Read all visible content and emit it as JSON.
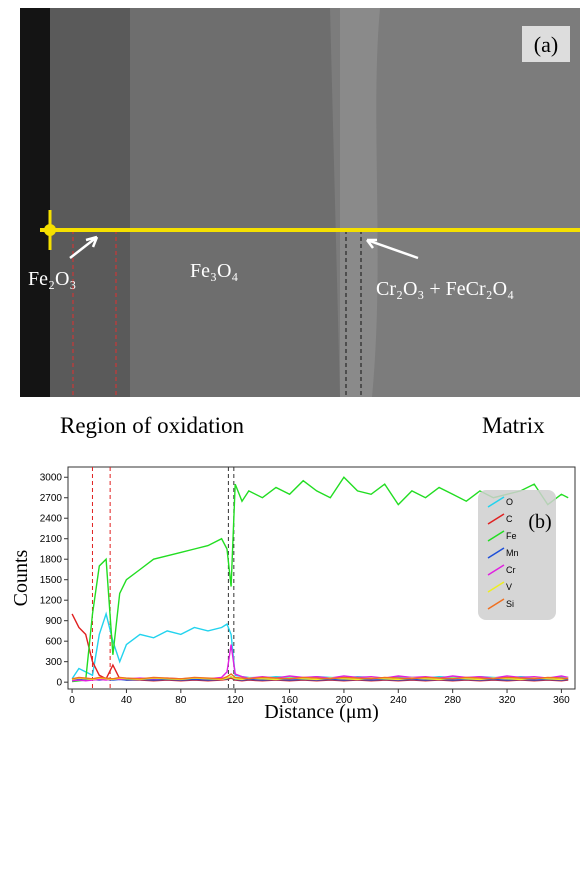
{
  "image": {
    "panel_label": "(a)",
    "labels": [
      "Fe₂O₃",
      "Fe₃O₄",
      "Cr₂O₃ + FeCr₂O₄"
    ],
    "captions": [
      "Region of oxidation",
      "Matrix"
    ]
  },
  "chart_data": {
    "type": "line",
    "annotation": "(b)",
    "xlabel": "Distance (μm)",
    "ylabel": "Counts",
    "x": [
      0,
      5,
      10,
      15,
      20,
      25,
      30,
      35,
      40,
      50,
      60,
      70,
      80,
      90,
      100,
      110,
      114,
      117,
      120,
      125,
      130,
      140,
      150,
      160,
      170,
      180,
      190,
      200,
      210,
      220,
      230,
      240,
      250,
      260,
      270,
      280,
      290,
      300,
      310,
      320,
      330,
      340,
      350,
      360,
      365
    ],
    "series": [
      {
        "name": "O",
        "color": "#22d3ee",
        "values": [
          50,
          200,
          150,
          100,
          700,
          1000,
          600,
          300,
          550,
          700,
          650,
          750,
          700,
          800,
          750,
          800,
          850,
          700,
          100,
          80,
          70,
          60,
          80,
          70,
          60,
          80,
          70,
          60,
          80,
          70,
          60,
          80,
          70,
          60,
          80,
          70,
          60,
          80,
          70,
          60,
          80,
          70,
          60,
          80,
          70
        ]
      },
      {
        "name": "C",
        "color": "#e02020",
        "values": [
          1000,
          800,
          700,
          300,
          100,
          50,
          250,
          50,
          30,
          30,
          20,
          30,
          20,
          30,
          20,
          30,
          40,
          60,
          30,
          20,
          30,
          20,
          30,
          20,
          30,
          20,
          30,
          20,
          30,
          20,
          30,
          20,
          30,
          20,
          30,
          20,
          30,
          20,
          30,
          20,
          30,
          20,
          30,
          20,
          30
        ]
      },
      {
        "name": "Fe",
        "color": "#22dd22",
        "values": [
          10,
          20,
          30,
          1000,
          1700,
          1800,
          400,
          1300,
          1500,
          1650,
          1800,
          1850,
          1900,
          1950,
          2000,
          2100,
          1950,
          1400,
          2900,
          2650,
          2800,
          2700,
          2850,
          2750,
          2950,
          2800,
          2700,
          3000,
          2800,
          2750,
          2900,
          2600,
          2800,
          2700,
          2850,
          2750,
          2650,
          2800,
          2700,
          2750,
          2800,
          2900,
          2600,
          2750,
          2700
        ]
      },
      {
        "name": "Mn",
        "color": "#1e4fd8",
        "values": [
          30,
          40,
          30,
          40,
          30,
          40,
          30,
          40,
          30,
          40,
          30,
          40,
          30,
          40,
          30,
          40,
          50,
          80,
          40,
          30,
          40,
          30,
          40,
          30,
          40,
          30,
          40,
          30,
          40,
          30,
          40,
          30,
          40,
          30,
          40,
          30,
          40,
          30,
          40,
          30,
          40,
          30,
          40,
          30,
          40
        ]
      },
      {
        "name": "Cr",
        "color": "#e020e0",
        "values": [
          20,
          30,
          20,
          30,
          40,
          30,
          50,
          40,
          50,
          60,
          50,
          60,
          50,
          60,
          50,
          70,
          150,
          550,
          120,
          80,
          60,
          80,
          60,
          90,
          70,
          80,
          60,
          90,
          70,
          80,
          60,
          90,
          70,
          80,
          60,
          90,
          70,
          80,
          60,
          90,
          70,
          80,
          60,
          90,
          70
        ]
      },
      {
        "name": "V",
        "color": "#eeee20",
        "values": [
          40,
          60,
          50,
          40,
          60,
          50,
          40,
          60,
          50,
          40,
          60,
          50,
          40,
          60,
          50,
          40,
          60,
          80,
          50,
          40,
          60,
          50,
          40,
          60,
          50,
          40,
          60,
          50,
          40,
          60,
          50,
          40,
          60,
          50,
          40,
          60,
          50,
          40,
          60,
          50,
          40,
          60,
          50,
          40,
          60
        ]
      },
      {
        "name": "Si",
        "color": "#f07020",
        "values": [
          50,
          70,
          60,
          50,
          70,
          60,
          50,
          70,
          60,
          50,
          70,
          60,
          50,
          70,
          60,
          50,
          80,
          120,
          70,
          60,
          50,
          70,
          60,
          50,
          70,
          60,
          50,
          70,
          60,
          50,
          70,
          60,
          50,
          70,
          60,
          50,
          70,
          60,
          50,
          70,
          60,
          50,
          70,
          60,
          50
        ]
      }
    ],
    "vlines": [
      {
        "x": 15,
        "color": "#e02020"
      },
      {
        "x": 28,
        "color": "#e02020"
      },
      {
        "x": 115,
        "color": "#333333"
      },
      {
        "x": 119,
        "color": "#333333"
      }
    ],
    "xlim": [
      -3,
      370
    ],
    "ylim": [
      -100,
      3150
    ],
    "xticks": [
      0,
      40,
      80,
      120,
      160,
      200,
      240,
      280,
      320,
      360
    ],
    "yticks": [
      0,
      300,
      600,
      900,
      1200,
      1500,
      1800,
      2100,
      2400,
      2700,
      3000
    ],
    "grid": false,
    "legend": "upper right"
  }
}
